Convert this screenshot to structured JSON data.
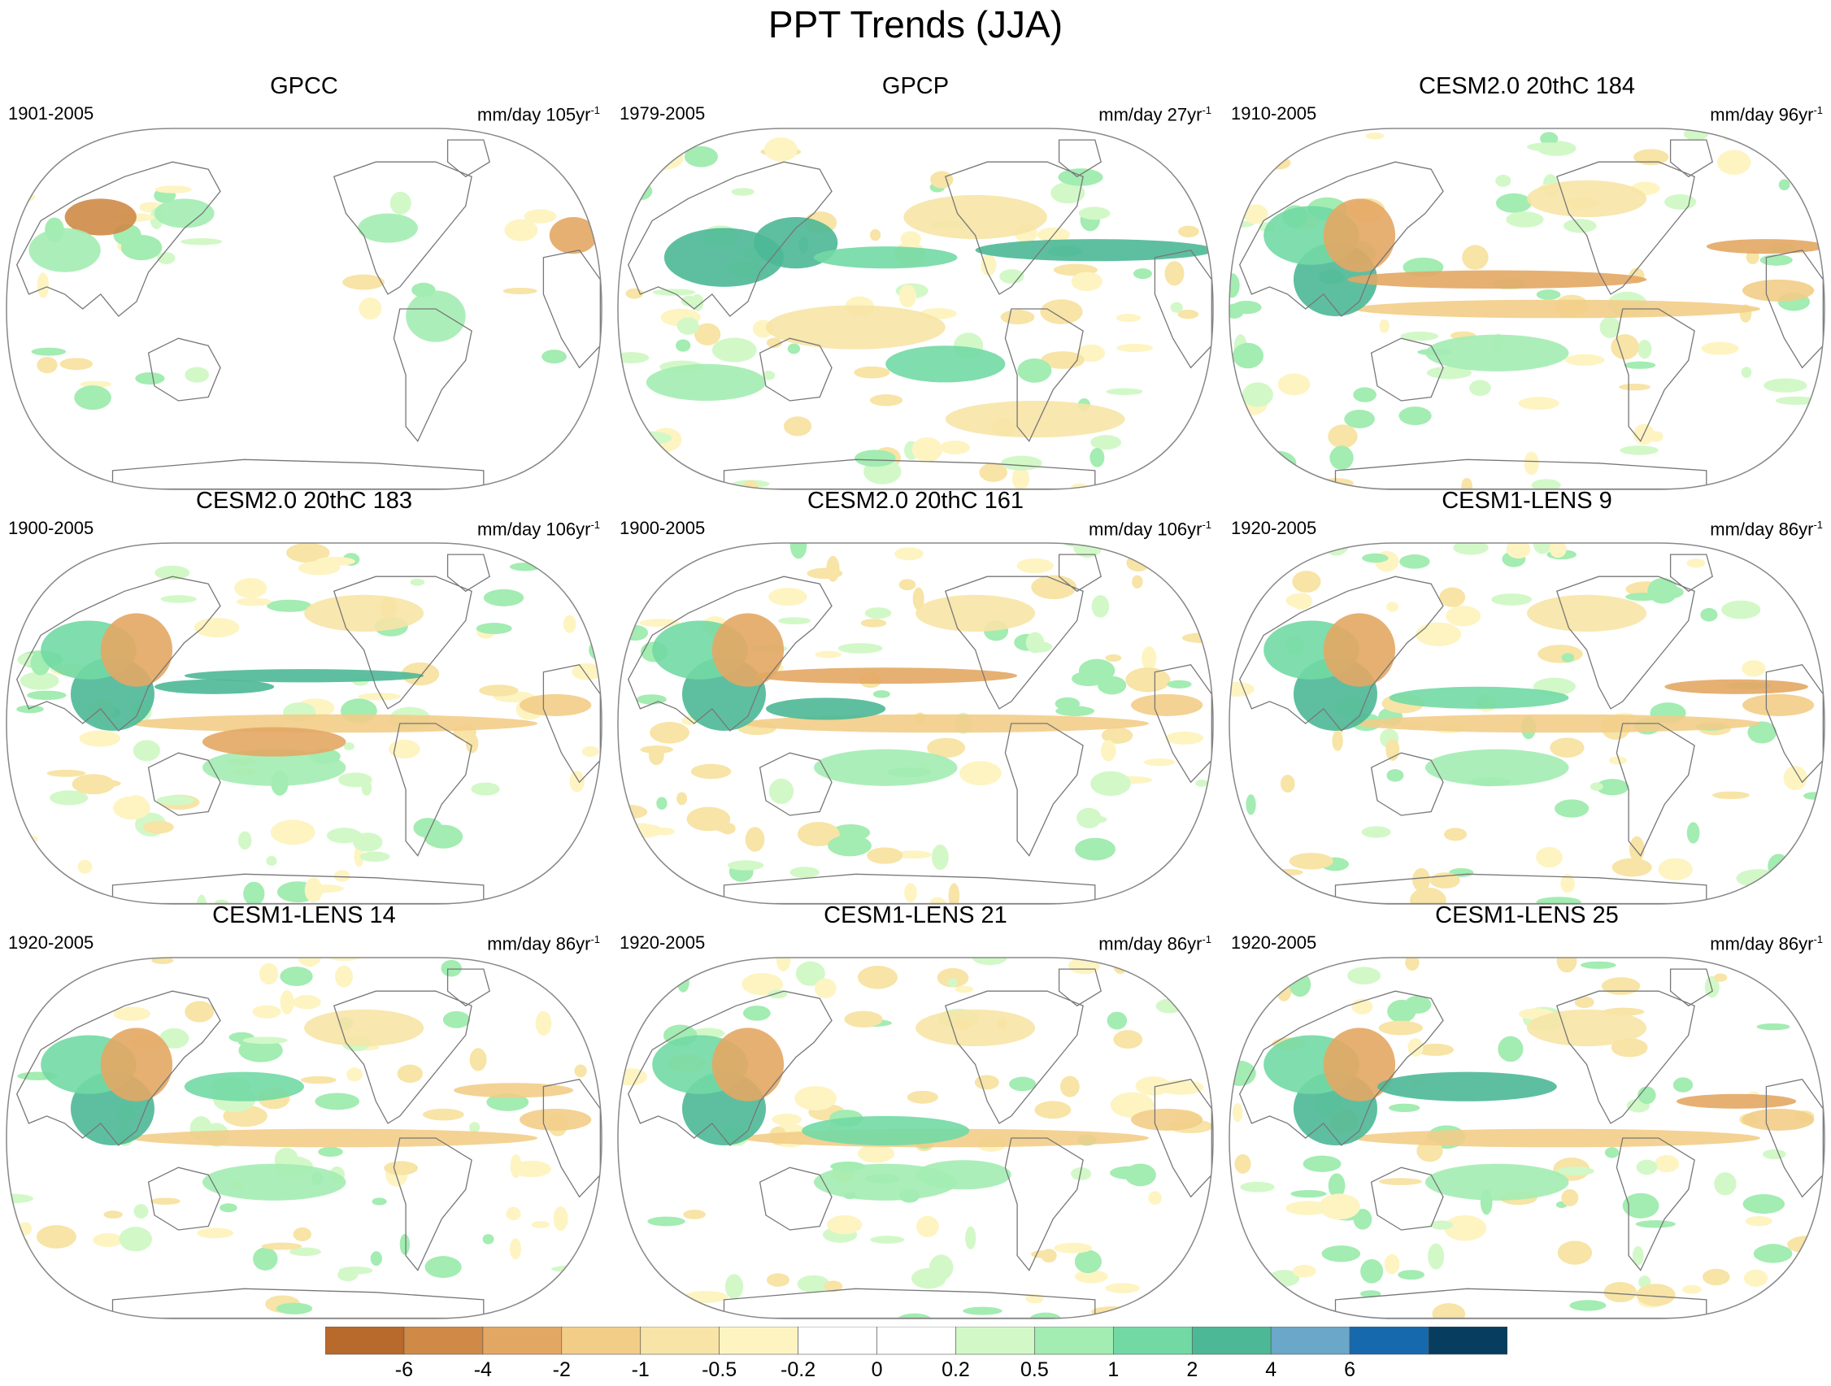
{
  "title": "PPT Trends (JJA)",
  "colors": {
    "land_outline": "#777777",
    "map_border": "#888888",
    "brown_strong": "#b8692c",
    "brown": "#cf8a47",
    "tan": "#e3a764",
    "light_tan": "#f2cd88",
    "pale": "#f7e4a6",
    "lightest_yellow": "#fdf4c2",
    "lightest_green": "#d2f8c8",
    "light_green": "#a3ecb2",
    "green": "#72d9a4",
    "teal": "#4db896",
    "blue_light": "#6aa7c9",
    "blue": "#1669ad",
    "navy": "#073d5e"
  },
  "panels": [
    {
      "title": "GPCC",
      "period": "1901-2005",
      "units": "mm/day 105yr",
      "exponent": "-1"
    },
    {
      "title": "GPCP",
      "period": "1979-2005",
      "units": "mm/day 27yr",
      "exponent": "-1"
    },
    {
      "title": "CESM2.0 20thC 184",
      "period": "1910-2005",
      "units": "mm/day 96yr",
      "exponent": "-1"
    },
    {
      "title": "CESM2.0 20thC 183",
      "period": "1900-2005",
      "units": "mm/day 106yr",
      "exponent": "-1"
    },
    {
      "title": "CESM2.0 20thC 161",
      "period": "1900-2005",
      "units": "mm/day 106yr",
      "exponent": "-1"
    },
    {
      "title": "CESM1-LENS 9",
      "period": "1920-2005",
      "units": "mm/day 86yr",
      "exponent": "-1"
    },
    {
      "title": "CESM1-LENS 14",
      "period": "1920-2005",
      "units": "mm/day 86yr",
      "exponent": "-1"
    },
    {
      "title": "CESM1-LENS 21",
      "period": "1920-2005",
      "units": "mm/day 86yr",
      "exponent": "-1"
    },
    {
      "title": "CESM1-LENS 25",
      "period": "1920-2005",
      "units": "mm/day 86yr",
      "exponent": "-1"
    }
  ],
  "colorbar": {
    "colors": [
      "#b8692c",
      "#cf8a47",
      "#e3a764",
      "#f2cd88",
      "#f7e4a6",
      "#fdf4c2",
      "#ffffff",
      "#ffffff",
      "#d2f8c8",
      "#a3ecb2",
      "#72d9a4",
      "#4db896",
      "#6aa7c9",
      "#1669ad",
      "#073d5e"
    ],
    "labels": [
      "-6",
      "-4",
      "-2",
      "-1",
      "-0.5",
      "-0.2",
      "0",
      "0.2",
      "0.5",
      "1",
      "2",
      "4",
      "6"
    ]
  }
}
